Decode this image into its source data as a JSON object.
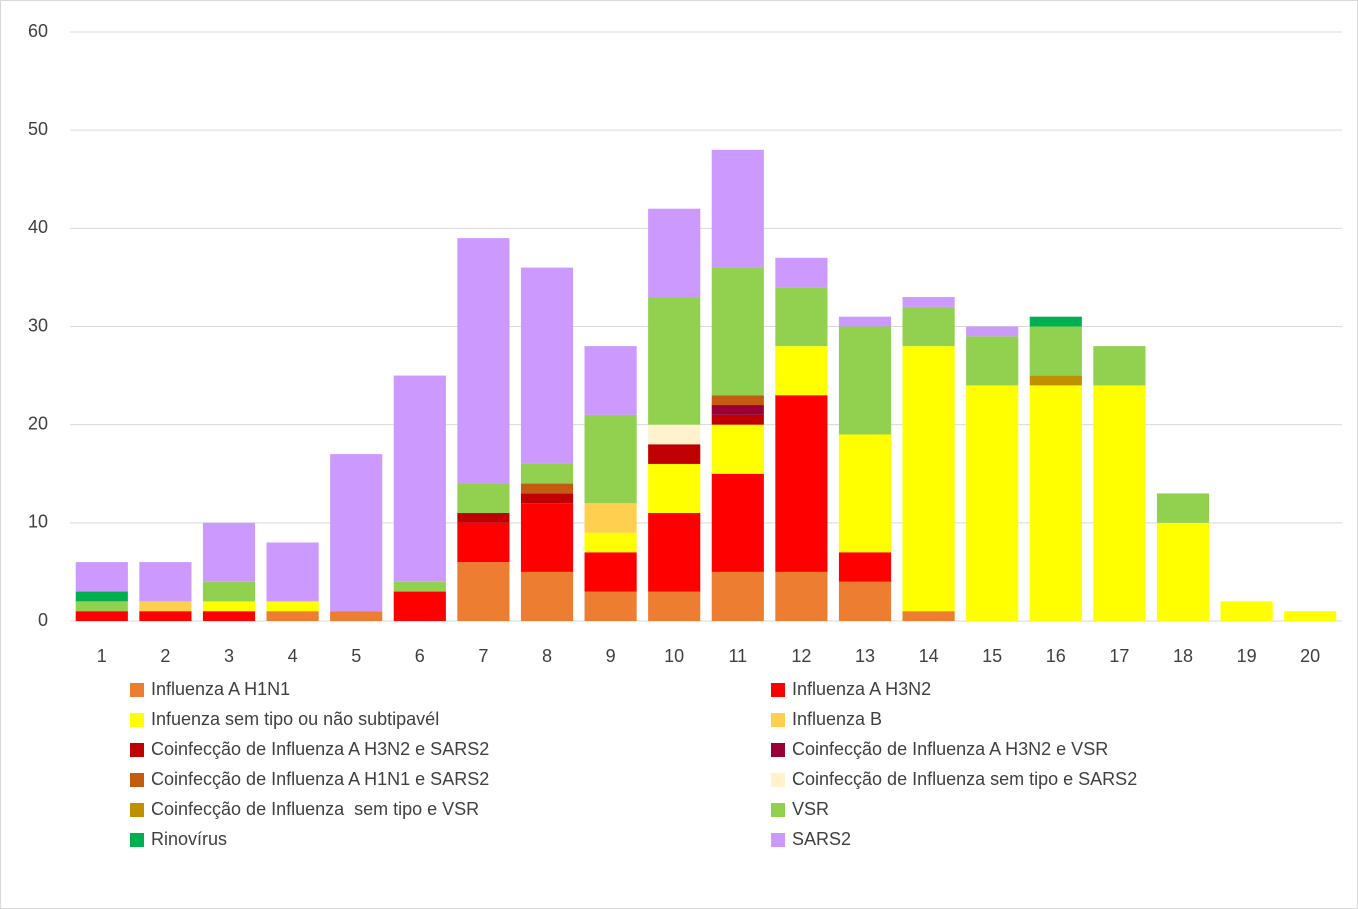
{
  "chart_data": {
    "type": "stacked_bar",
    "categories": [
      "1",
      "2",
      "3",
      "4",
      "5",
      "6",
      "7",
      "8",
      "9",
      "10",
      "11",
      "12",
      "13",
      "14",
      "15",
      "16",
      "17",
      "18",
      "19",
      "20"
    ],
    "ylim": [
      0,
      60
    ],
    "yticks": [
      0,
      10,
      20,
      30,
      40,
      50,
      60
    ],
    "grid": true,
    "legend": "bottom",
    "series": [
      {
        "name": "Influenza A H1N1",
        "color": "#ed7d31",
        "values": [
          0,
          0,
          0,
          1,
          1,
          0,
          6,
          5,
          3,
          3,
          5,
          5,
          4,
          1,
          0,
          0,
          0,
          0,
          0,
          0
        ]
      },
      {
        "name": "Influenza A H3N2",
        "color": "#ff0000",
        "values": [
          1,
          1,
          1,
          0,
          0,
          3,
          4,
          7,
          4,
          8,
          10,
          18,
          3,
          0,
          0,
          0,
          0,
          0,
          0,
          0
        ]
      },
      {
        "name": "Infuenza sem tipo ou não subtipavél",
        "color": "#ffff00",
        "values": [
          0,
          0,
          1,
          1,
          0,
          0,
          0,
          0,
          2,
          5,
          5,
          5,
          12,
          27,
          24,
          24,
          24,
          10,
          2,
          1
        ]
      },
      {
        "name": "Influenza B",
        "color": "#ffd050",
        "values": [
          0,
          1,
          0,
          0,
          0,
          0,
          0,
          0,
          3,
          0,
          0,
          0,
          0,
          0,
          0,
          0,
          0,
          0,
          0,
          0
        ]
      },
      {
        "name": "Coinfecção de Influenza A H3N2 e SARS2",
        "color": "#c00000",
        "values": [
          0,
          0,
          0,
          0,
          0,
          0,
          1,
          1,
          0,
          2,
          1,
          0,
          0,
          0,
          0,
          0,
          0,
          0,
          0,
          0
        ]
      },
      {
        "name": "Coinfecção de Influenza A H3N2 e VSR",
        "color": "#990033",
        "values": [
          0,
          0,
          0,
          0,
          0,
          0,
          0,
          0,
          0,
          0,
          1,
          0,
          0,
          0,
          0,
          0,
          0,
          0,
          0,
          0
        ]
      },
      {
        "name": "Coinfecção de Influenza A H1N1 e SARS2",
        "color": "#c55a11",
        "values": [
          0,
          0,
          0,
          0,
          0,
          0,
          0,
          1,
          0,
          0,
          1,
          0,
          0,
          0,
          0,
          0,
          0,
          0,
          0,
          0
        ]
      },
      {
        "name": "Coinfecção de Influenza sem tipo e SARS2",
        "color": "#fff2cc",
        "values": [
          0,
          0,
          0,
          0,
          0,
          0,
          0,
          0,
          0,
          2,
          0,
          0,
          0,
          0,
          0,
          0,
          0,
          0,
          0,
          0
        ]
      },
      {
        "name": "Coinfecção de Influenza  sem tipo e VSR",
        "color": "#bf9000",
        "values": [
          0,
          0,
          0,
          0,
          0,
          0,
          0,
          0,
          0,
          0,
          0,
          0,
          0,
          0,
          0,
          1,
          0,
          0,
          0,
          0
        ]
      },
      {
        "name": "VSR",
        "color": "#92d050",
        "values": [
          1,
          0,
          2,
          0,
          0,
          1,
          3,
          2,
          9,
          13,
          13,
          6,
          11,
          4,
          5,
          5,
          4,
          3,
          0,
          0
        ]
      },
      {
        "name": "Rinovírus",
        "color": "#00b050",
        "values": [
          1,
          0,
          0,
          0,
          0,
          0,
          0,
          0,
          0,
          0,
          0,
          0,
          0,
          0,
          0,
          1,
          0,
          0,
          0,
          0
        ]
      },
      {
        "name": "SARS2",
        "color": "#cc99ff",
        "values": [
          3,
          4,
          6,
          6,
          16,
          21,
          25,
          20,
          7,
          9,
          12,
          3,
          1,
          1,
          1,
          0,
          0,
          0,
          0,
          0
        ]
      }
    ]
  }
}
